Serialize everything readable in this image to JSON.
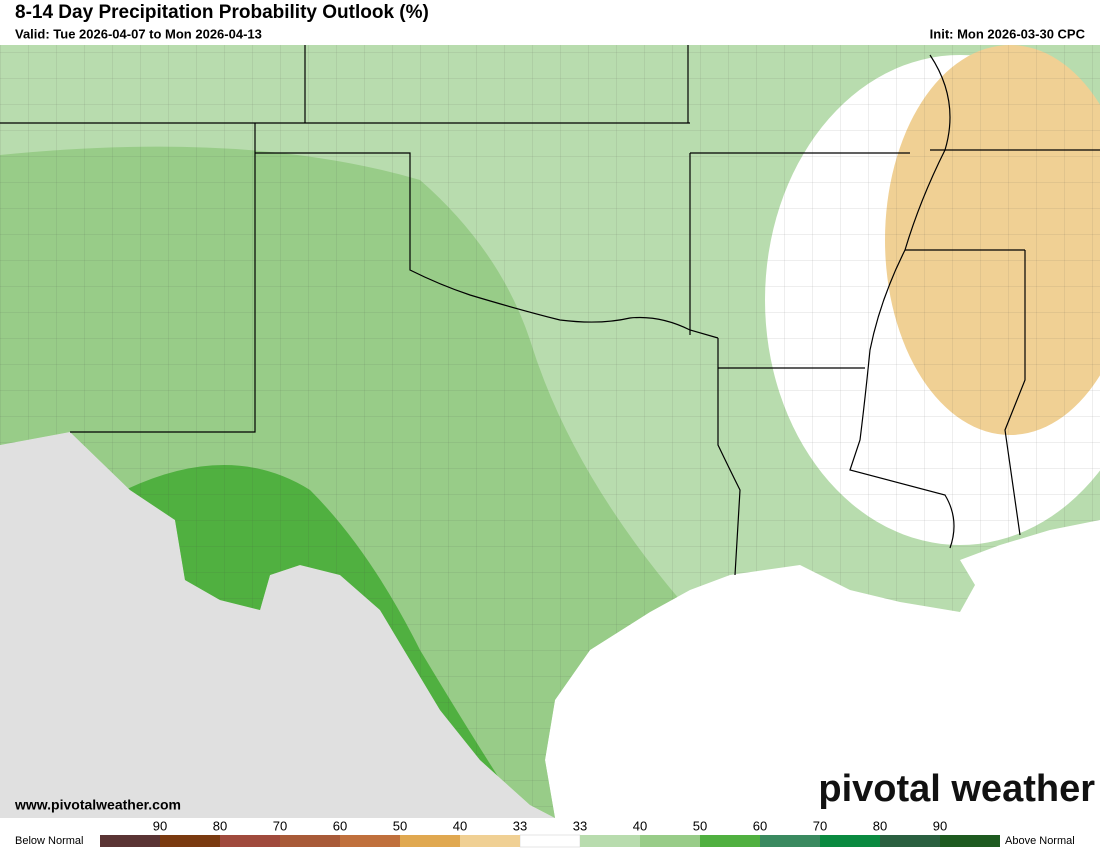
{
  "header": {
    "title": "8-14 Day Precipitation Probability Outlook (%)",
    "valid": "Valid: Tue 2026-04-07 to Mon 2026-04-13",
    "init": "Init: Mon 2026-03-30 CPC"
  },
  "footer": {
    "url": "www.pivotalweather.com",
    "logo": "pivotal weather"
  },
  "legend": {
    "below_label": "Below Normal",
    "above_label": "Above Normal",
    "below": [
      {
        "label": 90,
        "color": "#5a3434"
      },
      {
        "label": 80,
        "color": "#7a3a10"
      },
      {
        "label": 70,
        "color": "#a04a3c"
      },
      {
        "label": 60,
        "color": "#a85a38"
      },
      {
        "label": 50,
        "color": "#c0703c"
      },
      {
        "label": 40,
        "color": "#e0a850"
      },
      {
        "label": 33,
        "color": "#f0d094"
      }
    ],
    "above": [
      {
        "label": 33,
        "color": "#b8dcae"
      },
      {
        "label": 40,
        "color": "#98cc88"
      },
      {
        "label": 50,
        "color": "#50b040"
      },
      {
        "label": 60,
        "color": "#3a8a60"
      },
      {
        "label": 70,
        "color": "#0a8a40"
      },
      {
        "label": 80,
        "color": "#2a6040"
      },
      {
        "label": 90,
        "color": "#1e5a20"
      }
    ]
  }
}
